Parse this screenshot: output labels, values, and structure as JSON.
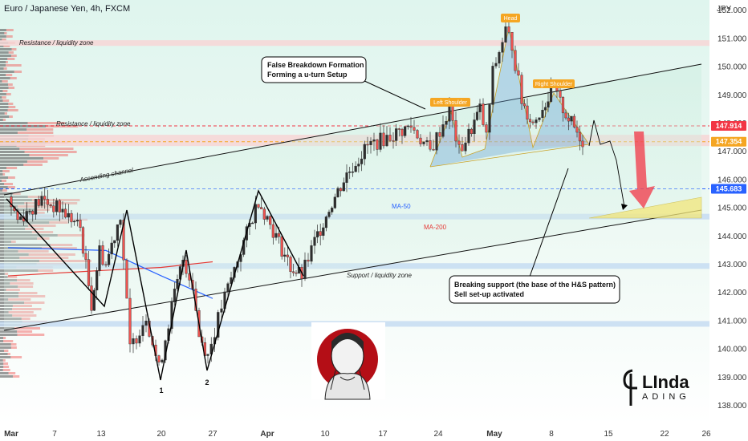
{
  "chart_data": {
    "type": "candlestick",
    "title": "Euro / Japanese Yen, 4h, FXCM",
    "currency": "JPY",
    "ylim": [
      137.6,
      152.2
    ],
    "y_ticks": [
      138.0,
      139.0,
      140.0,
      141.0,
      142.0,
      143.0,
      144.0,
      145.0,
      146.0,
      147.0,
      148.0,
      149.0,
      150.0,
      151.0,
      152.0
    ],
    "x_ticks": [
      "Mar",
      "7",
      "13",
      "20",
      "27",
      "Apr",
      "10",
      "17",
      "24",
      "May",
      "8",
      "15",
      "22",
      "26"
    ],
    "price_path": [
      {
        "x": "Mar",
        "y": 145.4
      },
      {
        "x": "3",
        "y": 144.6
      },
      {
        "x": "6",
        "y": 145.3
      },
      {
        "x": "8",
        "y": 144.9
      },
      {
        "x": "10",
        "y": 144.3
      },
      {
        "x": "11",
        "y": 141.6
      },
      {
        "x": "12",
        "y": 143.5
      },
      {
        "x": "13",
        "y": 143.0
      },
      {
        "x": "15",
        "y": 144.8
      },
      {
        "x": "16",
        "y": 140.0
      },
      {
        "x": "18",
        "y": 141.2
      },
      {
        "x": "19",
        "y": 139.3
      },
      {
        "x": "21",
        "y": 141.5
      },
      {
        "x": "23",
        "y": 143.2
      },
      {
        "x": "24",
        "y": 142.3
      },
      {
        "x": "25",
        "y": 140.5
      },
      {
        "x": "26",
        "y": 139.8
      },
      {
        "x": "28",
        "y": 141.5
      },
      {
        "x": "30",
        "y": 143.5
      },
      {
        "x": "31",
        "y": 145.3
      },
      {
        "x": "Apr 2",
        "y": 144.0
      },
      {
        "x": "Apr 4",
        "y": 142.9
      },
      {
        "x": "Apr 5",
        "y": 142.6
      },
      {
        "x": "Apr 7",
        "y": 143.8
      },
      {
        "x": "Apr 10",
        "y": 145.0
      },
      {
        "x": "Apr 13",
        "y": 146.2
      },
      {
        "x": "Apr 16",
        "y": 147.2
      },
      {
        "x": "Apr 19",
        "y": 147.6
      },
      {
        "x": "Apr 21",
        "y": 147.9
      },
      {
        "x": "Apr 23",
        "y": 147.0
      },
      {
        "x": "Apr 25",
        "y": 148.5
      },
      {
        "x": "Apr 26",
        "y": 147.0
      },
      {
        "x": "Apr 27",
        "y": 147.6
      },
      {
        "x": "Apr 28",
        "y": 148.5
      },
      {
        "x": "Apr 29",
        "y": 147.5
      },
      {
        "x": "May 1",
        "y": 149.8
      },
      {
        "x": "May 2",
        "y": 151.3
      },
      {
        "x": "May 3",
        "y": 150.8
      },
      {
        "x": "May 4",
        "y": 148.8
      },
      {
        "x": "May 5",
        "y": 148.0
      },
      {
        "x": "May 6",
        "y": 148.6
      },
      {
        "x": "May 7",
        "y": 149.2
      },
      {
        "x": "May 8",
        "y": 148.7
      },
      {
        "x": "May 9",
        "y": 148.0
      },
      {
        "x": "May 10",
        "y": 147.4
      }
    ],
    "ma50": {
      "name": "MA-50",
      "points": [
        {
          "x": "Mar",
          "y": 143.6
        },
        {
          "x": "13",
          "y": 143.5
        },
        {
          "x": "20",
          "y": 142.6
        },
        {
          "x": "27",
          "y": 141.8
        },
        {
          "x": "Apr",
          "y": 142.4
        },
        {
          "x": "Apr 10",
          "y": 143.7
        },
        {
          "x": "Apr 17",
          "y": 145.0
        },
        {
          "x": "Apr 24",
          "y": 146.6
        },
        {
          "x": "May",
          "y": 148.0
        },
        {
          "x": "May 6",
          "y": 149.0
        },
        {
          "x": "May 10",
          "y": 148.9
        },
        {
          "x": "May 13",
          "y": 148.7
        }
      ]
    },
    "ma200": {
      "name": "MA-200",
      "points": [
        {
          "x": "Mar",
          "y": 142.6
        },
        {
          "x": "13",
          "y": 142.8
        },
        {
          "x": "20",
          "y": 142.9
        },
        {
          "x": "27",
          "y": 143.1
        },
        {
          "x": "Apr",
          "y": 143.2
        },
        {
          "x": "Apr 10",
          "y": 143.5
        },
        {
          "x": "Apr 17",
          "y": 144.0
        },
        {
          "x": "Apr 24",
          "y": 144.3
        },
        {
          "x": "May",
          "y": 144.7
        },
        {
          "x": "May 8",
          "y": 145.5
        },
        {
          "x": "May 13",
          "y": 146.4
        }
      ]
    },
    "price_levels": [
      {
        "value": 147.914,
        "label": "147.914",
        "color": "#f23645"
      },
      {
        "value": 147.354,
        "label": "147.354",
        "color": "#f5a623"
      },
      {
        "value": 145.683,
        "label": "145.683",
        "color": "#2962ff"
      }
    ],
    "zones": [
      {
        "label": "Resistance / liquidity zone",
        "y": [
          150.75,
          150.95
        ]
      },
      {
        "label": "Resistance / liquidity zone",
        "y": [
          147.2,
          147.6
        ]
      },
      {
        "label": "",
        "y": [
          144.6,
          144.8
        ]
      },
      {
        "label": "Support / liquidity zone",
        "y": [
          142.85,
          143.05
        ]
      },
      {
        "label": "",
        "y": [
          140.8,
          141.0
        ]
      }
    ],
    "channel": {
      "label": "Ascending channel"
    },
    "wave_labels": [
      "1",
      "2"
    ],
    "pattern_labels": {
      "head": "Head",
      "left_shoulder": "Left Shoulder",
      "right_shoulder": "Right Shoulder"
    },
    "ma_labels": {
      "ma50": "MA-50",
      "ma200": "MA-200"
    },
    "callouts": [
      {
        "id": "breakdown",
        "lines": [
          "False Breakdown Formation",
          "Forming a u-turn Setup"
        ]
      },
      {
        "id": "support",
        "lines": [
          "Breaking support (the base of the H&S pattern)",
          "Sell set-up activated"
        ]
      }
    ],
    "colors": {
      "up": "#26a69a",
      "down": "#ef5350",
      "candle": "#2e2e2e",
      "ma50": "#2962ff",
      "ma200": "#e53935",
      "hs_fill": "#5b9bd5",
      "tag": "#f5a623",
      "target_zone": "#f3e77a",
      "arrow": "#f23645"
    }
  },
  "branding": {
    "logo_text_top": "LInda",
    "logo_text_bottom": "ADING"
  }
}
